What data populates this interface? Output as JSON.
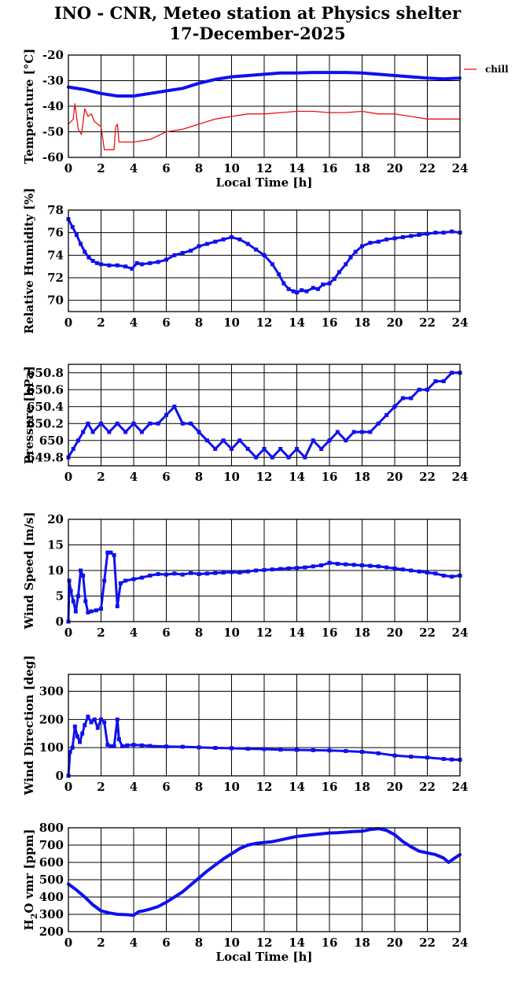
{
  "title": "INO - CNR, Meteo station at Physics shelter",
  "subtitle": "17-December-2025",
  "colors": {
    "primary": "#1010ee",
    "chill": "#ee1111",
    "grid": "#000000"
  },
  "chart_data": [
    {
      "type": "line",
      "id": "temperature",
      "ylabel": "Temperature [°C]",
      "xlabel": "Local Time [h]",
      "xlim": [
        0,
        24
      ],
      "ylim": [
        -60,
        -20
      ],
      "yticks": [
        -60,
        -50,
        -40,
        -30,
        -20
      ],
      "xticks": [
        0,
        2,
        4,
        6,
        8,
        10,
        12,
        14,
        16,
        18,
        20,
        22,
        24
      ],
      "grid": true,
      "legend": "right",
      "series": [
        {
          "name": "",
          "color": "#1010ee",
          "style": "thick",
          "x": [
            0,
            1,
            2,
            3,
            4,
            5,
            6,
            7,
            8,
            9,
            10,
            11,
            12,
            13,
            14,
            15,
            16,
            17,
            18,
            19,
            20,
            21,
            22,
            23,
            24
          ],
          "y": [
            -32.5,
            -33.5,
            -35,
            -36,
            -36,
            -35,
            -34,
            -33,
            -31,
            -29.5,
            -28.5,
            -28,
            -27.5,
            -27,
            -27,
            -26.8,
            -26.8,
            -26.8,
            -27,
            -27.5,
            -28,
            -28.5,
            -29,
            -29.3,
            -29
          ]
        },
        {
          "name": "chill",
          "color": "#ee1111",
          "style": "thin",
          "x": [
            0,
            0.3,
            0.4,
            0.6,
            0.8,
            1.0,
            1.2,
            1.4,
            1.6,
            1.8,
            2.0,
            2.2,
            2.5,
            2.8,
            2.9,
            3.0,
            3.1,
            3.5,
            4,
            5,
            6,
            7,
            8,
            9,
            10,
            11,
            12,
            13,
            14,
            15,
            16,
            17,
            18,
            19,
            20,
            21,
            22,
            23,
            24
          ],
          "y": [
            -47,
            -45,
            -39,
            -49,
            -51,
            -41,
            -44,
            -43,
            -46,
            -47,
            -48,
            -57,
            -57,
            -57,
            -48,
            -47,
            -54,
            -54,
            -54,
            -53,
            -50,
            -49,
            -47,
            -45,
            -44,
            -43,
            -43,
            -42.5,
            -42,
            -42,
            -42.5,
            -42.5,
            -42,
            -43,
            -43,
            -44,
            -45,
            -45,
            -45
          ]
        }
      ]
    },
    {
      "type": "scatter",
      "id": "humidity",
      "ylabel": "Relative Humidity [%]",
      "xlim": [
        0,
        24
      ],
      "ylim": [
        69,
        78
      ],
      "yticks": [
        70,
        72,
        74,
        76,
        78
      ],
      "xticks": [
        0,
        2,
        4,
        6,
        8,
        10,
        12,
        14,
        16,
        18,
        20,
        22,
        24
      ],
      "grid": true,
      "series": [
        {
          "name": "",
          "color": "#1010ee",
          "x": [
            0,
            0.25,
            0.5,
            0.75,
            1,
            1.25,
            1.5,
            1.75,
            2,
            2.5,
            3,
            3.5,
            3.9,
            4.2,
            4.5,
            5,
            5.5,
            6,
            6.5,
            7,
            7.5,
            8,
            8.5,
            9,
            9.5,
            10,
            10.5,
            11,
            11.5,
            12,
            12.5,
            12.9,
            13.2,
            13.5,
            13.8,
            14,
            14.3,
            14.6,
            15,
            15.3,
            15.6,
            16,
            16.3,
            16.6,
            17,
            17.3,
            17.6,
            18,
            18.5,
            19,
            19.5,
            20,
            20.5,
            21,
            21.5,
            22,
            22.5,
            23,
            23.5,
            24
          ],
          "y": [
            77.2,
            76.5,
            75.8,
            75,
            74.3,
            73.8,
            73.5,
            73.3,
            73.2,
            73.1,
            73.1,
            73,
            72.8,
            73.3,
            73.2,
            73.3,
            73.4,
            73.6,
            74,
            74.2,
            74.4,
            74.8,
            75,
            75.2,
            75.4,
            75.6,
            75.4,
            75,
            74.5,
            74,
            73.2,
            72.3,
            71.5,
            71,
            70.8,
            70.7,
            70.9,
            70.8,
            71.1,
            71,
            71.4,
            71.5,
            71.9,
            72.5,
            73.2,
            73.8,
            74.3,
            74.8,
            75.1,
            75.2,
            75.4,
            75.5,
            75.6,
            75.7,
            75.8,
            75.9,
            76,
            76,
            76.1,
            76
          ]
        }
      ]
    },
    {
      "type": "scatter",
      "id": "pressure",
      "ylabel": "Pressure [hPa]",
      "xlim": [
        0,
        24
      ],
      "ylim": [
        649.7,
        650.9
      ],
      "yticks": [
        "649.8",
        "650",
        "650.2",
        "650.4",
        "650.6",
        "650.8"
      ],
      "xticks": [
        0,
        2,
        4,
        6,
        8,
        10,
        12,
        14,
        16,
        18,
        20,
        22,
        24
      ],
      "grid": true,
      "series": [
        {
          "name": "",
          "color": "#1010ee",
          "x": [
            0,
            0.3,
            0.6,
            0.9,
            1.2,
            1.5,
            2,
            2.5,
            3,
            3.5,
            4,
            4.5,
            5,
            5.5,
            6,
            6.5,
            7,
            7.5,
            8,
            8.5,
            9,
            9.5,
            10,
            10.5,
            11,
            11.5,
            12,
            12.5,
            13,
            13.5,
            14,
            14.5,
            15,
            15.5,
            16,
            16.5,
            17,
            17.5,
            18,
            18.5,
            19,
            19.5,
            20,
            20.5,
            21,
            21.5,
            22,
            22.5,
            23,
            23.5,
            24
          ],
          "y": [
            649.8,
            649.9,
            650,
            650.1,
            650.2,
            650.1,
            650.2,
            650.1,
            650.2,
            650.1,
            650.2,
            650.1,
            650.2,
            650.2,
            650.3,
            650.4,
            650.2,
            650.2,
            650.1,
            650,
            649.9,
            650,
            649.9,
            650,
            649.9,
            649.8,
            649.9,
            649.8,
            649.9,
            649.8,
            649.9,
            649.8,
            650,
            649.9,
            650,
            650.1,
            650,
            650.1,
            650.1,
            650.1,
            650.2,
            650.3,
            650.4,
            650.5,
            650.5,
            650.6,
            650.6,
            650.7,
            650.7,
            650.8,
            650.8
          ]
        }
      ]
    },
    {
      "type": "scatter",
      "id": "wind-speed",
      "ylabel": "Wind Speed [m/s]",
      "xlim": [
        0,
        24
      ],
      "ylim": [
        0,
        20
      ],
      "yticks": [
        0,
        5,
        10,
        15,
        20
      ],
      "xticks": [
        0,
        2,
        4,
        6,
        8,
        10,
        12,
        14,
        16,
        18,
        20,
        22,
        24
      ],
      "grid": true,
      "series": [
        {
          "name": "",
          "color": "#1010ee",
          "x": [
            0,
            0.05,
            0.15,
            0.3,
            0.45,
            0.6,
            0.75,
            0.9,
            1.05,
            1.2,
            1.4,
            1.7,
            2.0,
            2.2,
            2.4,
            2.6,
            2.8,
            3.0,
            3.2,
            3.5,
            4,
            4.5,
            5,
            5.5,
            6,
            6.5,
            7,
            7.5,
            8,
            8.5,
            9,
            9.5,
            10,
            10.5,
            11,
            11.5,
            12,
            12.5,
            13,
            13.5,
            14,
            14.5,
            15,
            15.5,
            16,
            16.5,
            17,
            17.5,
            18,
            18.5,
            19,
            19.5,
            20,
            20.5,
            21,
            21.5,
            22,
            22.5,
            23,
            23.5,
            24
          ],
          "y": [
            0,
            8,
            6,
            4,
            2,
            5,
            10,
            9,
            4,
            1.8,
            2,
            2.2,
            2.5,
            8,
            13.5,
            13.5,
            13,
            3,
            7.5,
            8,
            8.3,
            8.6,
            9,
            9.3,
            9.2,
            9.4,
            9.2,
            9.5,
            9.3,
            9.4,
            9.5,
            9.6,
            9.7,
            9.6,
            9.8,
            10,
            10.1,
            10.2,
            10.3,
            10.4,
            10.5,
            10.6,
            10.8,
            11,
            11.5,
            11.3,
            11.2,
            11.1,
            11,
            10.9,
            10.8,
            10.6,
            10.4,
            10.2,
            10,
            9.8,
            9.6,
            9.4,
            9,
            8.8,
            9
          ]
        }
      ]
    },
    {
      "type": "scatter",
      "id": "wind-direction",
      "ylabel": "Wind Direction [deg]",
      "xlim": [
        0,
        24
      ],
      "ylim": [
        0,
        360
      ],
      "yticks": [
        0,
        100,
        200,
        300
      ],
      "xticks": [
        0,
        2,
        4,
        6,
        8,
        10,
        12,
        14,
        16,
        18,
        20,
        22,
        24
      ],
      "grid": true,
      "series": [
        {
          "name": "",
          "color": "#1010ee",
          "x": [
            0,
            0.1,
            0.25,
            0.4,
            0.55,
            0.7,
            0.85,
            1.0,
            1.2,
            1.4,
            1.6,
            1.8,
            2.0,
            2.2,
            2.4,
            2.6,
            2.8,
            3.0,
            3.1,
            3.3,
            3.6,
            4,
            4.5,
            5,
            6,
            7,
            8,
            9,
            10,
            11,
            12,
            13,
            14,
            15,
            16,
            17,
            18,
            19,
            20,
            21,
            22,
            23,
            23.5,
            24
          ],
          "y": [
            0,
            85,
            100,
            175,
            140,
            120,
            150,
            180,
            210,
            190,
            200,
            170,
            200,
            190,
            110,
            105,
            105,
            200,
            130,
            105,
            108,
            110,
            108,
            106,
            104,
            103,
            101,
            99,
            98,
            96,
            95,
            93,
            92,
            91,
            90,
            88,
            85,
            80,
            72,
            68,
            65,
            60,
            58,
            57
          ]
        }
      ]
    },
    {
      "type": "line",
      "id": "h2o-vmr",
      "ylabel": "H",
      "ylabel_sub": "2",
      "ylabel_rest": "O vmr [ppm]",
      "xlabel": "Local Time [h]",
      "xlim": [
        0,
        24
      ],
      "ylim": [
        200,
        800
      ],
      "yticks": [
        200,
        300,
        400,
        500,
        600,
        700,
        800
      ],
      "xticks": [
        0,
        2,
        4,
        6,
        8,
        10,
        12,
        14,
        16,
        18,
        20,
        22,
        24
      ],
      "grid": true,
      "series": [
        {
          "name": "",
          "color": "#1010ee",
          "x": [
            0,
            0.5,
            1,
            1.5,
            2,
            2.5,
            3,
            3.5,
            4,
            4.3,
            4.6,
            5,
            5.5,
            6,
            6.5,
            7,
            7.5,
            8,
            8.5,
            9,
            9.5,
            10,
            10.5,
            11,
            11.5,
            12,
            12.5,
            13,
            13.5,
            14,
            14.5,
            15,
            15.5,
            16,
            16.5,
            17,
            17.5,
            18,
            18.5,
            19,
            19.5,
            20,
            20.5,
            21,
            21.5,
            22,
            22.5,
            23,
            23.3,
            23.6,
            24
          ],
          "y": [
            475,
            440,
            400,
            355,
            320,
            308,
            300,
            298,
            295,
            315,
            320,
            330,
            345,
            370,
            400,
            430,
            470,
            510,
            550,
            585,
            620,
            650,
            680,
            700,
            710,
            715,
            720,
            730,
            740,
            750,
            755,
            760,
            765,
            770,
            772,
            775,
            778,
            780,
            790,
            795,
            785,
            760,
            720,
            690,
            665,
            655,
            645,
            625,
            600,
            620,
            645
          ]
        }
      ]
    }
  ]
}
